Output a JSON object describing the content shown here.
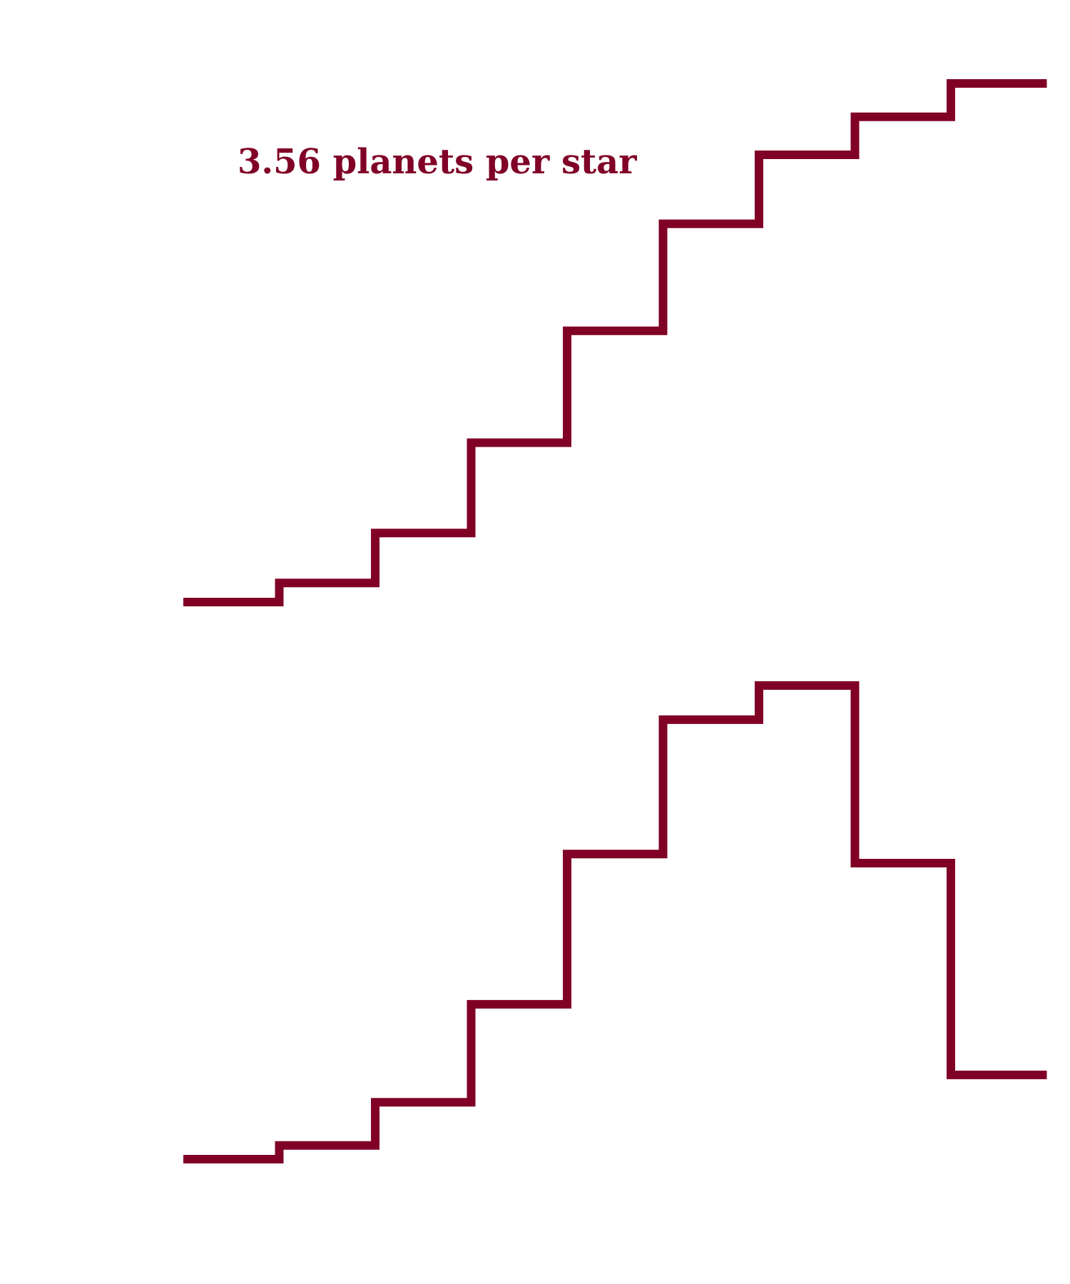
{
  "chart_data": [
    {
      "type": "line",
      "drawstyle": "steps-post",
      "x": [
        1,
        2,
        3,
        4,
        5,
        6,
        7,
        8,
        9
      ],
      "series": [
        {
          "values": [
            0.0,
            0.08,
            0.29,
            0.67,
            1.14,
            1.59,
            1.88,
            2.04,
            2.18
          ]
        }
      ],
      "ylim": [
        0,
        2.18
      ],
      "annotation": "3.56 planets per star",
      "grid": false,
      "color": "#800026"
    },
    {
      "type": "line",
      "drawstyle": "steps-post",
      "x": [
        1,
        2,
        3,
        4,
        5,
        6,
        7,
        8,
        9
      ],
      "series": [
        {
          "values": [
            0.0,
            0.06,
            0.25,
            0.68,
            1.34,
            1.93,
            2.08,
            1.3,
            0.37
          ]
        }
      ],
      "ylim": [
        0,
        2.08
      ],
      "grid": false,
      "color": "#800026"
    }
  ]
}
